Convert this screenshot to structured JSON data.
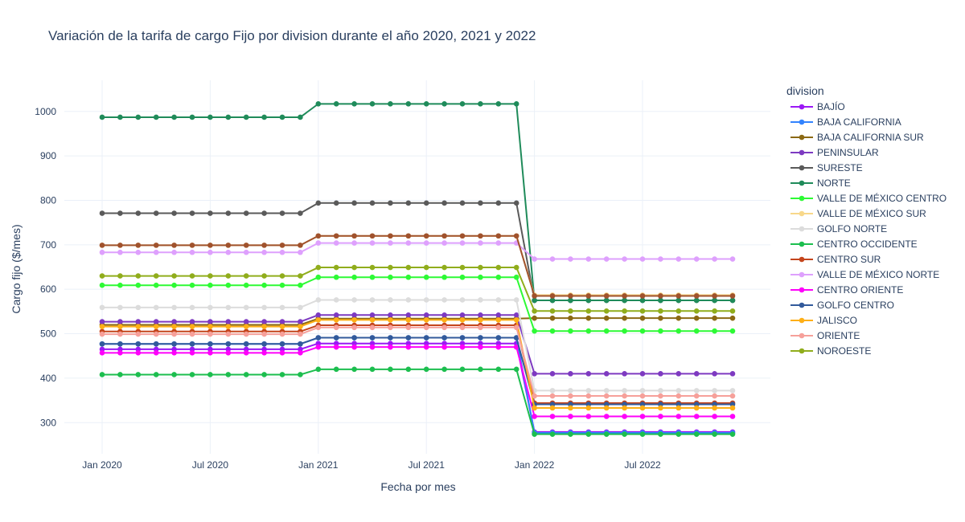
{
  "chart_data": {
    "type": "line",
    "title": "Variación de la tarifa de cargo Fijo por division durante el año 2020, 2021 y 2022",
    "xlabel": "Fecha por mes",
    "ylabel": "Cargo fijo ($/mes)",
    "legend_title": "division",
    "legend_position": "right",
    "grid": true,
    "x_start": "2020-01",
    "x_end": "2022-12",
    "x_ticks": [
      {
        "label": "Jan 2020",
        "date": "2020-01"
      },
      {
        "label": "Jul 2020",
        "date": "2020-07"
      },
      {
        "label": "Jan 2021",
        "date": "2021-01"
      },
      {
        "label": "Jul 2021",
        "date": "2021-07"
      },
      {
        "label": "Jan 2022",
        "date": "2022-01"
      },
      {
        "label": "Jul 2022",
        "date": "2022-07"
      }
    ],
    "ylim": [
      230,
      1070
    ],
    "y_ticks": [
      300,
      400,
      500,
      600,
      700,
      800,
      900,
      1000
    ],
    "series": [
      {
        "name": "BAJÍO",
        "color": "#9b19f5",
        "values": [
          465,
          478,
          279
        ]
      },
      {
        "name": "BAJA CALIFORNIA",
        "color": "#3283fe",
        "values": [
          477,
          491,
          277
        ]
      },
      {
        "name": "BAJA CALIFORNIA SUR",
        "color": "#8b6914",
        "values": [
          520,
          534,
          535
        ]
      },
      {
        "name": "PENINSULAR",
        "color": "#7d3ac1",
        "values": [
          527,
          542,
          410
        ]
      },
      {
        "name": "SURESTE",
        "color": "#5a5a5a",
        "values": [
          771,
          794,
          575
        ]
      },
      {
        "name": "NORTE",
        "color": "#1f8b5a",
        "values": [
          987,
          1017,
          575
        ]
      },
      {
        "name": "VALLE DE MÉXICO CENTRO",
        "color": "#2dfa35",
        "values": [
          609,
          627,
          506
        ]
      },
      {
        "name": "VALLE DE MÉXICO SUR",
        "color": "#f8d88a",
        "values": [
          699,
          720,
          587
        ]
      },
      {
        "name": "GOLFO NORTE",
        "color": "#dcdcdc",
        "values": [
          559,
          576,
          372
        ]
      },
      {
        "name": "CENTRO OCCIDENTE",
        "color": "#1cbe4f",
        "values": [
          408,
          420,
          274
        ]
      },
      {
        "name": "CENTRO SUR",
        "color": "#c4451c",
        "values": [
          505,
          519,
          344
        ]
      },
      {
        "name": "VALLE DE MÉXICO NORTE",
        "color": "#dea0fd",
        "values": [
          683,
          704,
          668
        ]
      },
      {
        "name": "CENTRO ORIENTE",
        "color": "#fe00fa",
        "values": [
          457,
          470,
          314
        ]
      },
      {
        "name": "GOLFO CENTRO",
        "color": "#325a9b",
        "values": [
          477,
          491,
          341
        ]
      },
      {
        "name": "JALISCO",
        "color": "#feaf16",
        "values": [
          516,
          531,
          333
        ]
      },
      {
        "name": "ORIENTE",
        "color": "#f6a09a",
        "values": [
          499,
          514,
          360
        ]
      },
      {
        "name": "NOROESTE",
        "color": "#90ad1c",
        "values": [
          630,
          649,
          551
        ]
      },
      {
        "name": "",
        "color": "#a0522d",
        "values": [
          699,
          720,
          585
        ]
      }
    ]
  }
}
